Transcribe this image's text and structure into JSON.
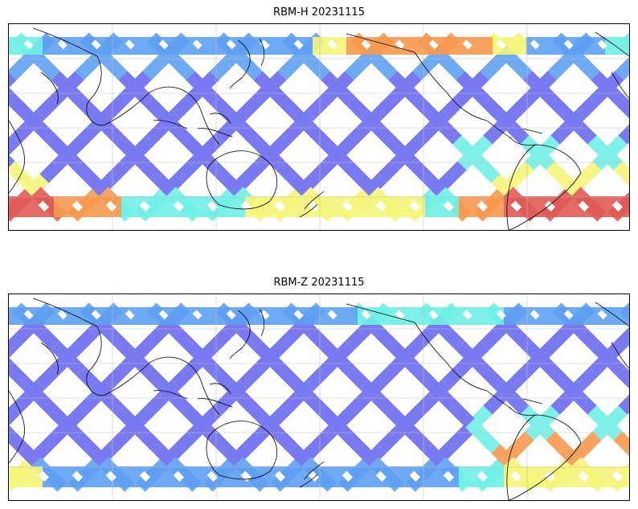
{
  "panels": [
    {
      "id": "top",
      "title": "RBM-H 20231115"
    },
    {
      "id": "bottom",
      "title": "RBM-Z 20231115"
    }
  ],
  "colors": {
    "low": "#6b6bf0",
    "mid_low": "#5fa0f2",
    "mid": "#6ff0e6",
    "mid_high": "#f6f67a",
    "high": "#f79a4e",
    "very_high": "#e05a55",
    "coast": "#000000",
    "grid": "#bfbfbf"
  }
}
